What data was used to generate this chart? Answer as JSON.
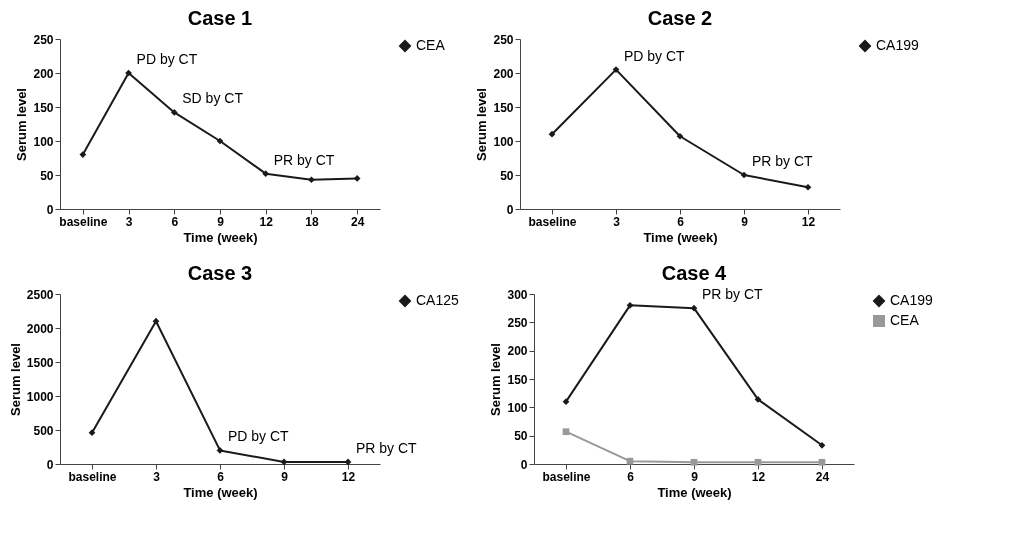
{
  "chart_data": [
    {
      "type": "line",
      "title": "Case 1",
      "xlabel": "Time (week)",
      "ylabel": "Serum level",
      "categories": [
        "baseline",
        "3",
        "6",
        "9",
        "12",
        "18",
        "24"
      ],
      "series": [
        {
          "name": "CEA",
          "color": "#1a1a1a",
          "marker": "diamond",
          "values": [
            80,
            200,
            142,
            100,
            52,
            43,
            45
          ]
        }
      ],
      "ylim": [
        0,
        250
      ],
      "yticks": [
        0,
        50,
        100,
        150,
        200,
        250
      ],
      "grid": false,
      "legend": "right",
      "annotations": [
        {
          "text": "PD by CT",
          "x": "3",
          "y": 200
        },
        {
          "text": "SD by CT",
          "x": "6",
          "y": 142
        },
        {
          "text": "PR  by CT",
          "x": "12",
          "y": 52
        }
      ]
    },
    {
      "type": "line",
      "title": "Case  2",
      "xlabel": "Time (week)",
      "ylabel": "Serum level",
      "categories": [
        "baseline",
        "3",
        "6",
        "9",
        "12"
      ],
      "series": [
        {
          "name": "CA199",
          "color": "#1a1a1a",
          "marker": "diamond",
          "values": [
            110,
            205,
            107,
            50,
            32
          ]
        }
      ],
      "ylim": [
        0,
        250
      ],
      "yticks": [
        0,
        50,
        100,
        150,
        200,
        250
      ],
      "grid": false,
      "legend": "right",
      "annotations": [
        {
          "text": "PD by CT",
          "x": "3",
          "y": 205
        },
        {
          "text": "PR by CT",
          "x": "9",
          "y": 50
        }
      ]
    },
    {
      "type": "line",
      "title": "Case 3",
      "xlabel": "Time (week)",
      "ylabel": "Serum level",
      "categories": [
        "baseline",
        "3",
        "6",
        "9",
        "12"
      ],
      "series": [
        {
          "name": "CA125",
          "color": "#1a1a1a",
          "marker": "diamond",
          "values": [
            460,
            2100,
            200,
            30,
            30
          ]
        }
      ],
      "ylim": [
        0,
        2500
      ],
      "yticks": [
        0,
        500,
        1000,
        1500,
        2000,
        2500
      ],
      "grid": false,
      "legend": "right",
      "annotations": [
        {
          "text": "PD by CT",
          "x": "6",
          "y": 200
        },
        {
          "text": "PR by CT",
          "x": "12",
          "y": 30
        }
      ]
    },
    {
      "type": "line",
      "title": "Case 4",
      "xlabel": "Time (week)",
      "ylabel": "Serum level",
      "categories": [
        "baseline",
        "6",
        "9",
        "12",
        "24"
      ],
      "series": [
        {
          "name": "CA199",
          "color": "#1a1a1a",
          "marker": "diamond",
          "values": [
            110,
            280,
            275,
            114,
            33
          ]
        },
        {
          "name": "CEA",
          "color": "#999999",
          "marker": "square",
          "values": [
            57,
            5,
            3,
            3,
            3
          ]
        }
      ],
      "ylim": [
        0,
        300
      ],
      "yticks": [
        0,
        50,
        100,
        150,
        200,
        250,
        300
      ],
      "grid": false,
      "legend": "right",
      "annotations": [
        {
          "text": "PR by CT",
          "x": "9",
          "y": 275
        }
      ]
    }
  ]
}
